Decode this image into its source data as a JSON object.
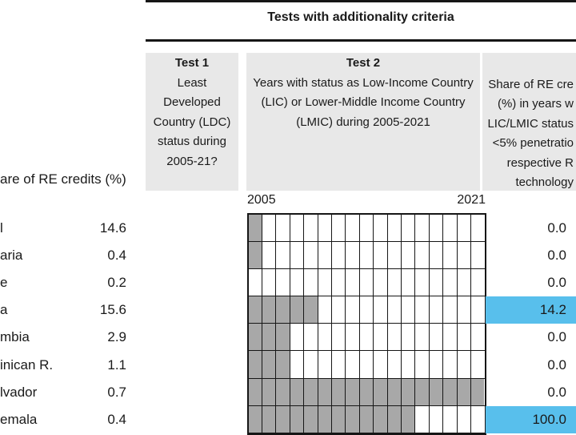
{
  "header": {
    "title": "Tests with additionality criteria"
  },
  "left_panel": {
    "column_label": "are of RE credits (%)"
  },
  "tests": {
    "test1": {
      "title": "Test 1",
      "lines": [
        "Least",
        "Developed",
        "Country (LDC)",
        "status during",
        "2005-21?"
      ]
    },
    "test2": {
      "title": "Test 2",
      "lines": [
        "Years with status as Low-Income Country",
        "(LIC) or Lower-Middle Income Country",
        "(LMIC) during 2005-2021"
      ]
    },
    "test3_partial": {
      "lines": [
        "Share of RE cre",
        "(%) in years w",
        "LIC/LMIC status",
        "<5% penetratio",
        "respective R",
        "technology"
      ]
    }
  },
  "colors": {
    "highlight_blue": "#58bfec",
    "status_gray": "#a8a8a8",
    "header_box_gray": "#e8e8e8"
  },
  "chart_data": {
    "type": "heatmap",
    "title": "Tests with additionality criteria",
    "x_axis": {
      "start_year": "2005",
      "end_year": "2021",
      "n_years": 17
    },
    "rows": [
      {
        "country": "l",
        "share_of_re_credits_pct": "14.6",
        "lic_lmic_gray_years": 1,
        "test3_value": "0.0",
        "test3_highlight": false
      },
      {
        "country": "aria",
        "share_of_re_credits_pct": "0.4",
        "lic_lmic_gray_years": 1,
        "test3_value": "0.0",
        "test3_highlight": false
      },
      {
        "country": "e",
        "share_of_re_credits_pct": "0.2",
        "lic_lmic_gray_years": 0,
        "test3_value": "0.0",
        "test3_highlight": false
      },
      {
        "country": "a",
        "share_of_re_credits_pct": "15.6",
        "lic_lmic_gray_years": 5,
        "test3_value": "14.2",
        "test3_highlight": true
      },
      {
        "country": "mbia",
        "share_of_re_credits_pct": "2.9",
        "lic_lmic_gray_years": 3,
        "test3_value": "0.0",
        "test3_highlight": false
      },
      {
        "country": "inican R.",
        "share_of_re_credits_pct": "1.1",
        "lic_lmic_gray_years": 3,
        "test3_value": "0.0",
        "test3_highlight": false
      },
      {
        "country": "lvador",
        "share_of_re_credits_pct": "0.7",
        "lic_lmic_gray_years": 17,
        "test3_value": "0.0",
        "test3_highlight": false
      },
      {
        "country": "emala",
        "share_of_re_credits_pct": "0.4",
        "lic_lmic_gray_years": 12,
        "test3_value": "100.0",
        "test3_highlight": true
      }
    ]
  }
}
